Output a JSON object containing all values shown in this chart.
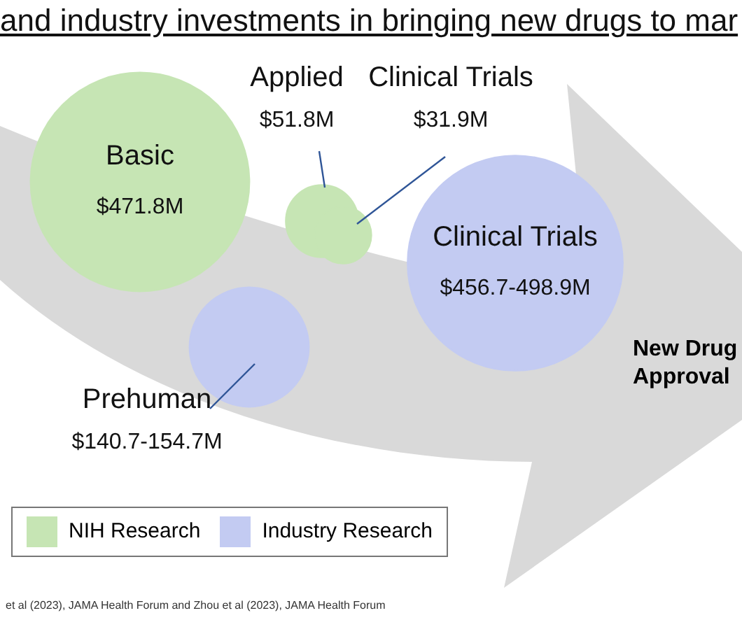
{
  "chart_data": {
    "type": "other",
    "title": "and industry investments in bringing new drugs to mar",
    "categories": [
      "Basic",
      "Applied",
      "Clinical Trials",
      "Prehuman",
      "Clinical Trials"
    ],
    "series": [
      {
        "name": "NIH Research",
        "color": "#c6e5b4",
        "values": [
          471.8,
          51.8,
          31.9,
          null,
          null
        ],
        "value_labels": [
          "$471.8M",
          "$51.8M",
          "$31.9M",
          null,
          null
        ]
      },
      {
        "name": "Industry Research",
        "color": "#c3cbf2",
        "values": [
          null,
          null,
          null,
          140.7,
          456.7
        ],
        "value_labels": [
          null,
          null,
          null,
          "$140.7-154.7M",
          "$456.7-498.9M"
        ]
      }
    ],
    "legend": "bottom left",
    "annotations": [
      "New Drug Approval",
      "et al (2023), JAMA Health Forum  and Zhou et al (2023), JAMA Health Forum"
    ]
  }
}
